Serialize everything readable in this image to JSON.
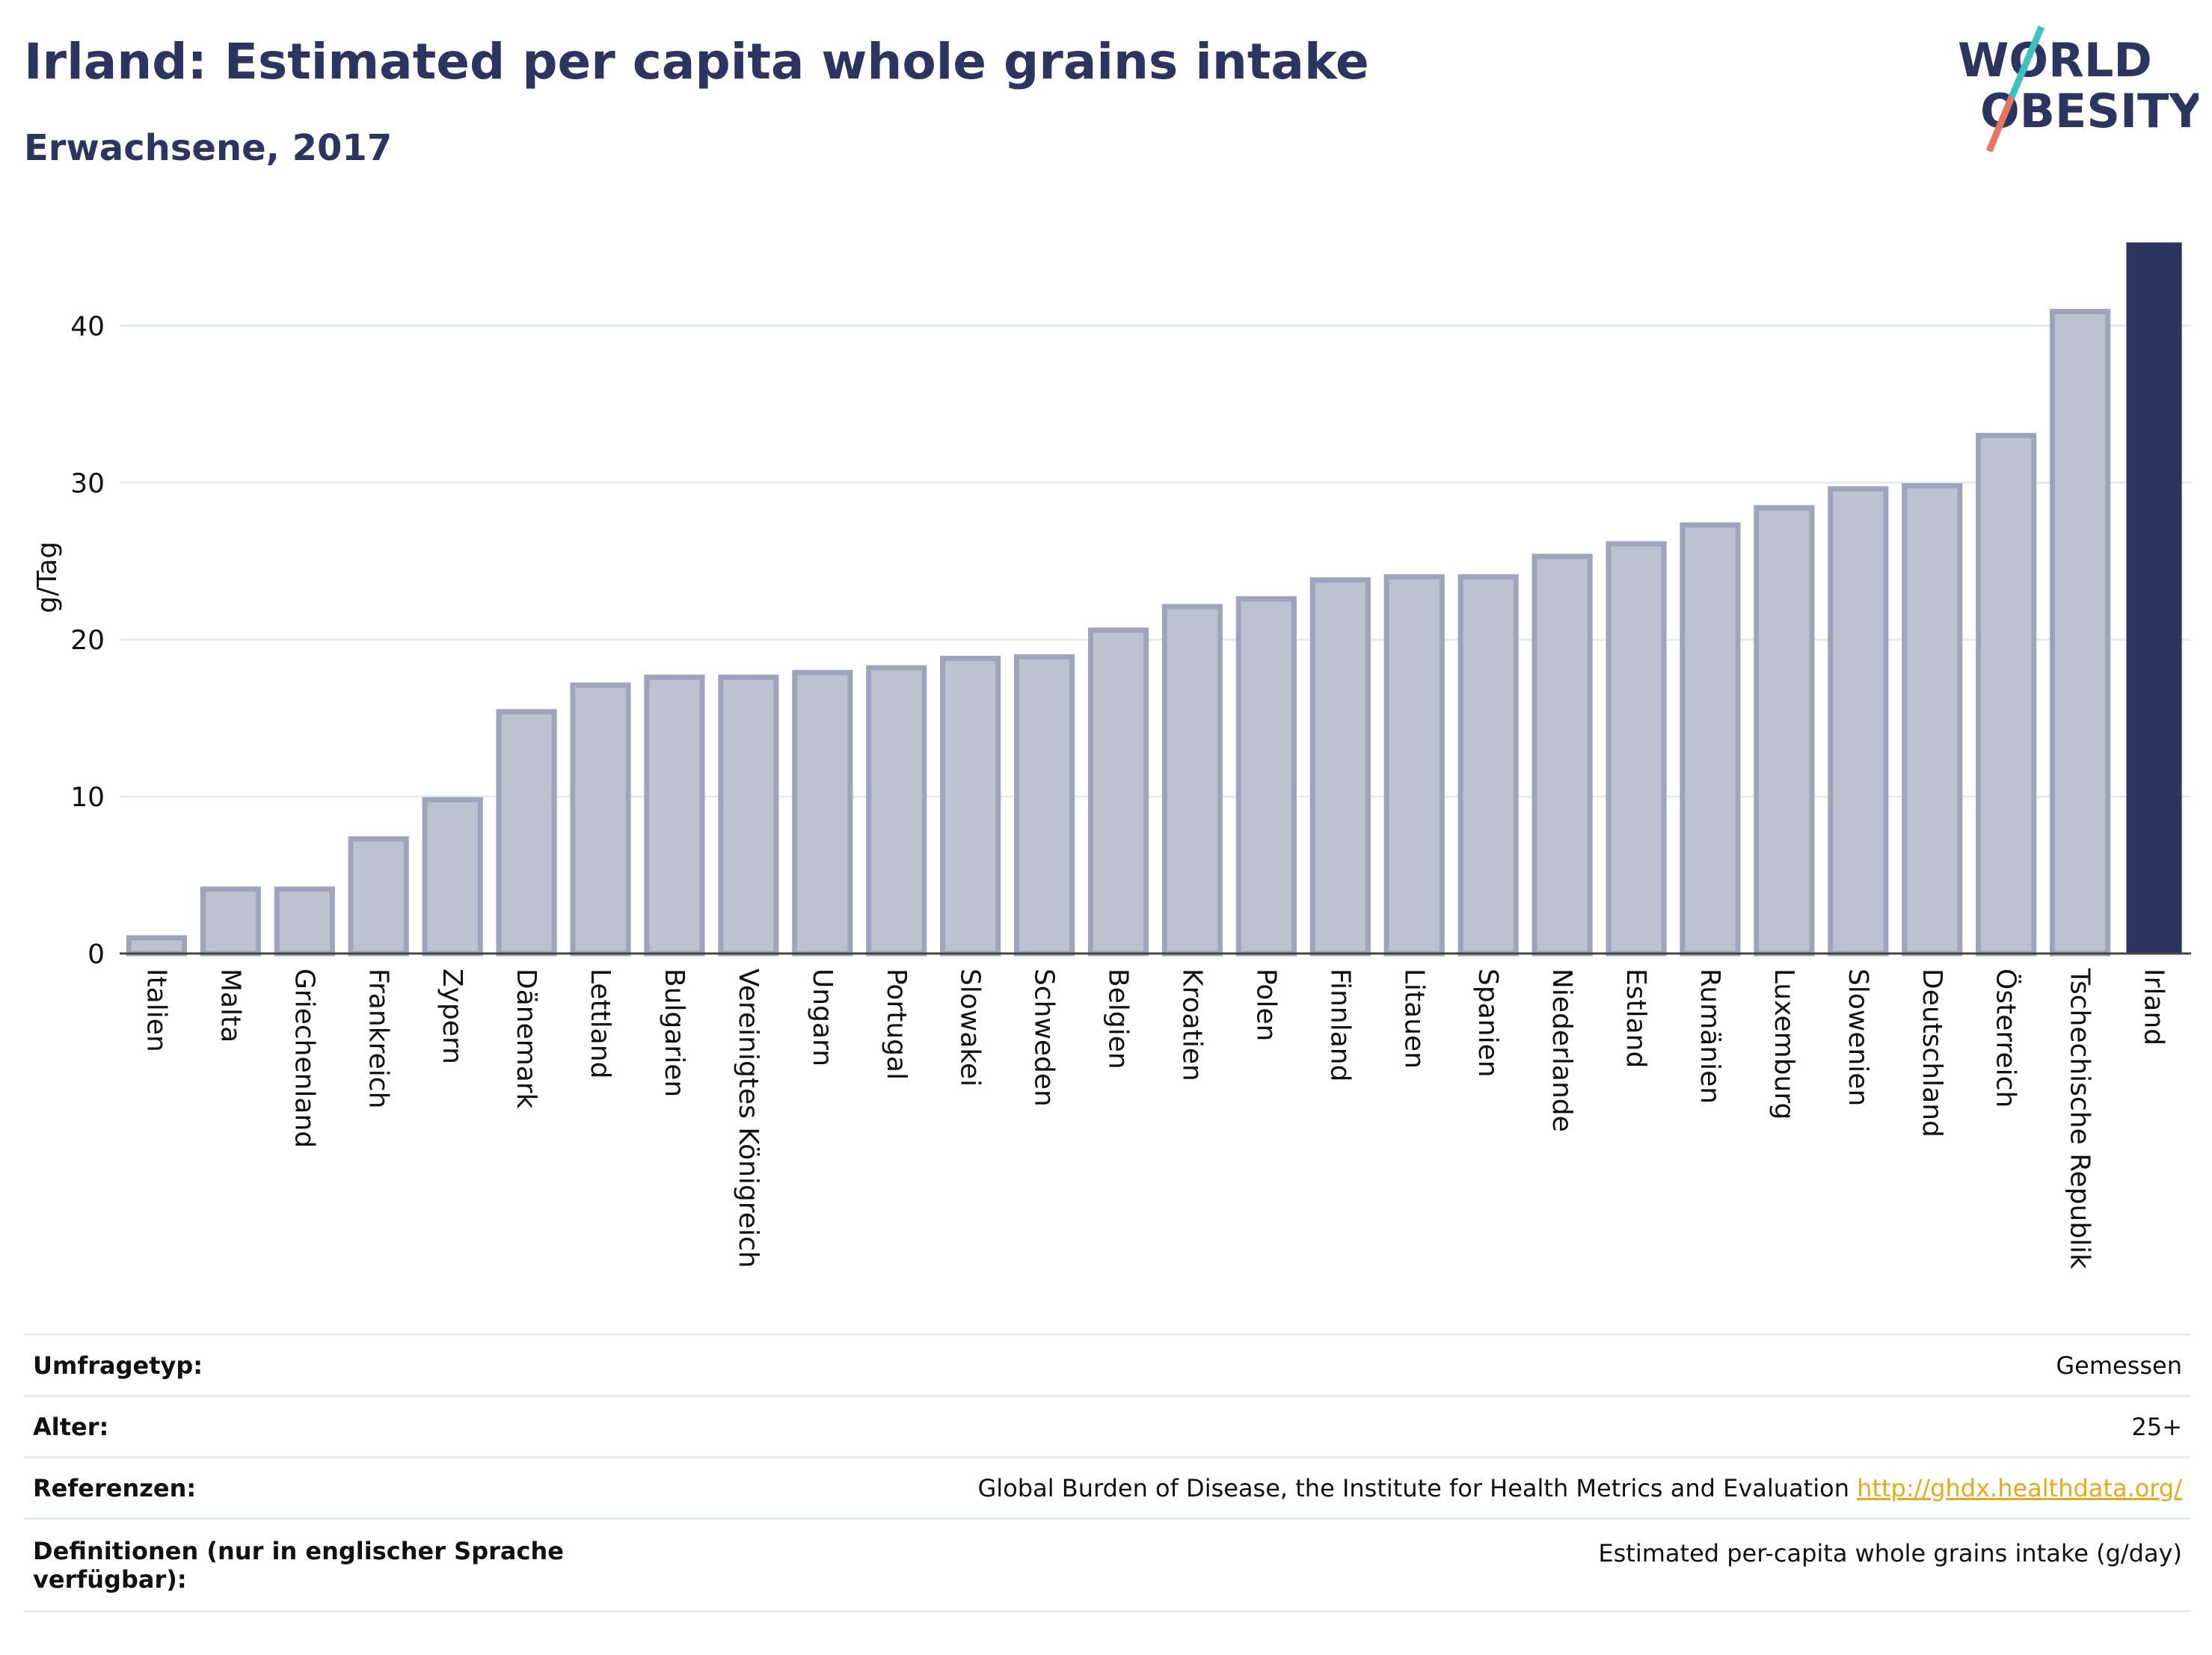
{
  "title": "Irland: Estimated per capita whole grains intake",
  "subtitle": "Erwachsene, 2017",
  "logo": {
    "line1": "WORLD",
    "line2": "OBESITY"
  },
  "colors": {
    "bar_fill": "#bec1d0",
    "bar_stroke": "#9fa4bd",
    "highlight": "#2b3560",
    "grid": "#e6ebf0",
    "link": "#e8a81e",
    "logo_teal": "#3fbfc0",
    "logo_coral": "#e8735f"
  },
  "chart_data": {
    "type": "bar",
    "ylabel": "g/Tag",
    "ylim": [
      0,
      45.5
    ],
    "yticks": [
      0,
      10,
      20,
      30,
      40
    ],
    "grid": true,
    "highlight": "Irland",
    "categories": [
      "Italien",
      "Malta",
      "Griechenland",
      "Frankreich",
      "Zypern",
      "Dänemark",
      "Lettland",
      "Bulgarien",
      "Vereinigtes Königreich",
      "Ungarn",
      "Portugal",
      "Slowakei",
      "Schweden",
      "Belgien",
      "Kroatien",
      "Polen",
      "Finnland",
      "Litauen",
      "Spanien",
      "Niederlande",
      "Estland",
      "Rumänien",
      "Luxemburg",
      "Slowenien",
      "Deutschland",
      "Österreich",
      "Tschechische Republik",
      "Irland"
    ],
    "values": [
      1.0,
      4.1,
      4.1,
      7.3,
      9.8,
      15.4,
      17.1,
      17.6,
      17.6,
      17.9,
      18.2,
      18.8,
      18.9,
      20.6,
      22.1,
      22.6,
      23.8,
      24.0,
      24.0,
      25.3,
      26.1,
      27.3,
      28.4,
      29.6,
      29.8,
      33.0,
      40.9,
      45.3
    ]
  },
  "meta": {
    "survey_type_label": "Umfragetyp:",
    "survey_type_value": "Gemessen",
    "age_label": "Alter:",
    "age_value": "25+",
    "references_label": "Referenzen:",
    "references_text": "Global Burden of Disease, the Institute for Health Metrics and Evaluation ",
    "references_link": "http://ghdx.healthdata.org/",
    "definitions_label": "Definitionen (nur in englischer Sprache verfügbar):",
    "definitions_value": "Estimated per-capita whole grains intake (g/day)"
  }
}
